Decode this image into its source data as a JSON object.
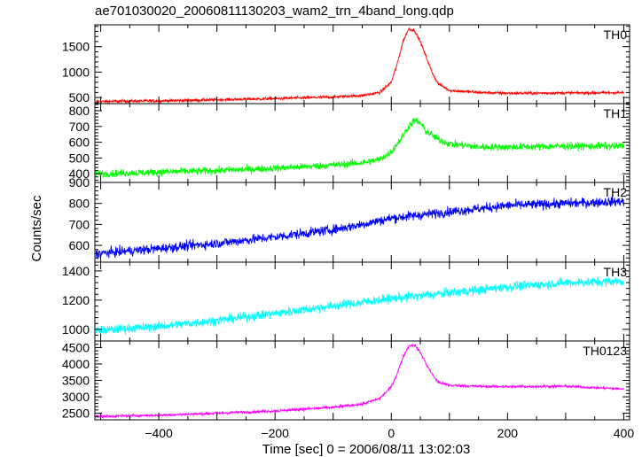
{
  "chart_data": {
    "type": "line",
    "title": "ae701030020_20060811130203_wam2_trn_4band_long.qdp",
    "xlabel": "Time [sec] 0 = 2006/08/11 13:02:03",
    "ylabel": "Counts/sec",
    "xlim": [
      -510,
      410
    ],
    "x_ticks": [
      -400,
      -200,
      0,
      200,
      400
    ],
    "x_tick_labels": [
      "−400",
      "−200",
      "0",
      "200",
      "400"
    ],
    "panels": [
      {
        "label": "TH0",
        "color": "#ff0000",
        "ylim": [
          380,
          1930
        ],
        "yticks": [
          500,
          1000,
          1500
        ],
        "noise": 28,
        "x": [
          -510,
          -400,
          -300,
          -200,
          -100,
          -50,
          -20,
          0,
          10,
          20,
          30,
          40,
          50,
          60,
          70,
          80,
          100,
          150,
          200,
          300,
          400
        ],
        "y": [
          420,
          435,
          455,
          480,
          510,
          540,
          600,
          800,
          1150,
          1600,
          1850,
          1820,
          1600,
          1300,
          1000,
          780,
          640,
          600,
          585,
          590,
          595
        ]
      },
      {
        "label": "TH1",
        "color": "#00ff00",
        "ylim": [
          345,
          845
        ],
        "yticks": [
          400,
          500,
          600,
          700,
          800
        ],
        "noise": 22,
        "x": [
          -510,
          -400,
          -300,
          -200,
          -100,
          -50,
          -20,
          0,
          20,
          30,
          40,
          50,
          60,
          80,
          100,
          150,
          200,
          300,
          400
        ],
        "y": [
          400,
          410,
          420,
          435,
          455,
          470,
          490,
          540,
          640,
          700,
          740,
          720,
          670,
          620,
          590,
          570,
          570,
          575,
          575
        ]
      },
      {
        "label": "TH2",
        "color": "#0000ff",
        "ylim": [
          520,
          900
        ],
        "yticks": [
          600,
          700,
          800,
          900
        ],
        "noise": 22,
        "x": [
          -510,
          -400,
          -300,
          -200,
          -100,
          -50,
          0,
          50,
          100,
          200,
          300,
          400
        ],
        "y": [
          560,
          585,
          610,
          640,
          675,
          700,
          730,
          745,
          760,
          790,
          800,
          810
        ]
      },
      {
        "label": "TH3",
        "color": "#00ffff",
        "ylim": [
          920,
          1460
        ],
        "yticks": [
          1000,
          1200,
          1400
        ],
        "noise": 30,
        "x": [
          -510,
          -400,
          -300,
          -200,
          -100,
          0,
          100,
          200,
          300,
          400
        ],
        "y": [
          990,
          1020,
          1060,
          1110,
          1160,
          1210,
          1250,
          1290,
          1320,
          1330
        ]
      },
      {
        "label": "TH0123",
        "color": "#ff00ff",
        "ylim": [
          2300,
          4700
        ],
        "yticks": [
          2500,
          3000,
          3500,
          4000,
          4500
        ],
        "noise": 40,
        "x": [
          -510,
          -400,
          -300,
          -200,
          -100,
          -50,
          -20,
          0,
          10,
          20,
          30,
          40,
          50,
          60,
          70,
          80,
          100,
          150,
          200,
          300,
          400
        ],
        "y": [
          2400,
          2440,
          2500,
          2570,
          2680,
          2780,
          2950,
          3300,
          3700,
          4200,
          4550,
          4580,
          4350,
          4000,
          3700,
          3450,
          3350,
          3320,
          3310,
          3320,
          3240
        ]
      }
    ]
  }
}
